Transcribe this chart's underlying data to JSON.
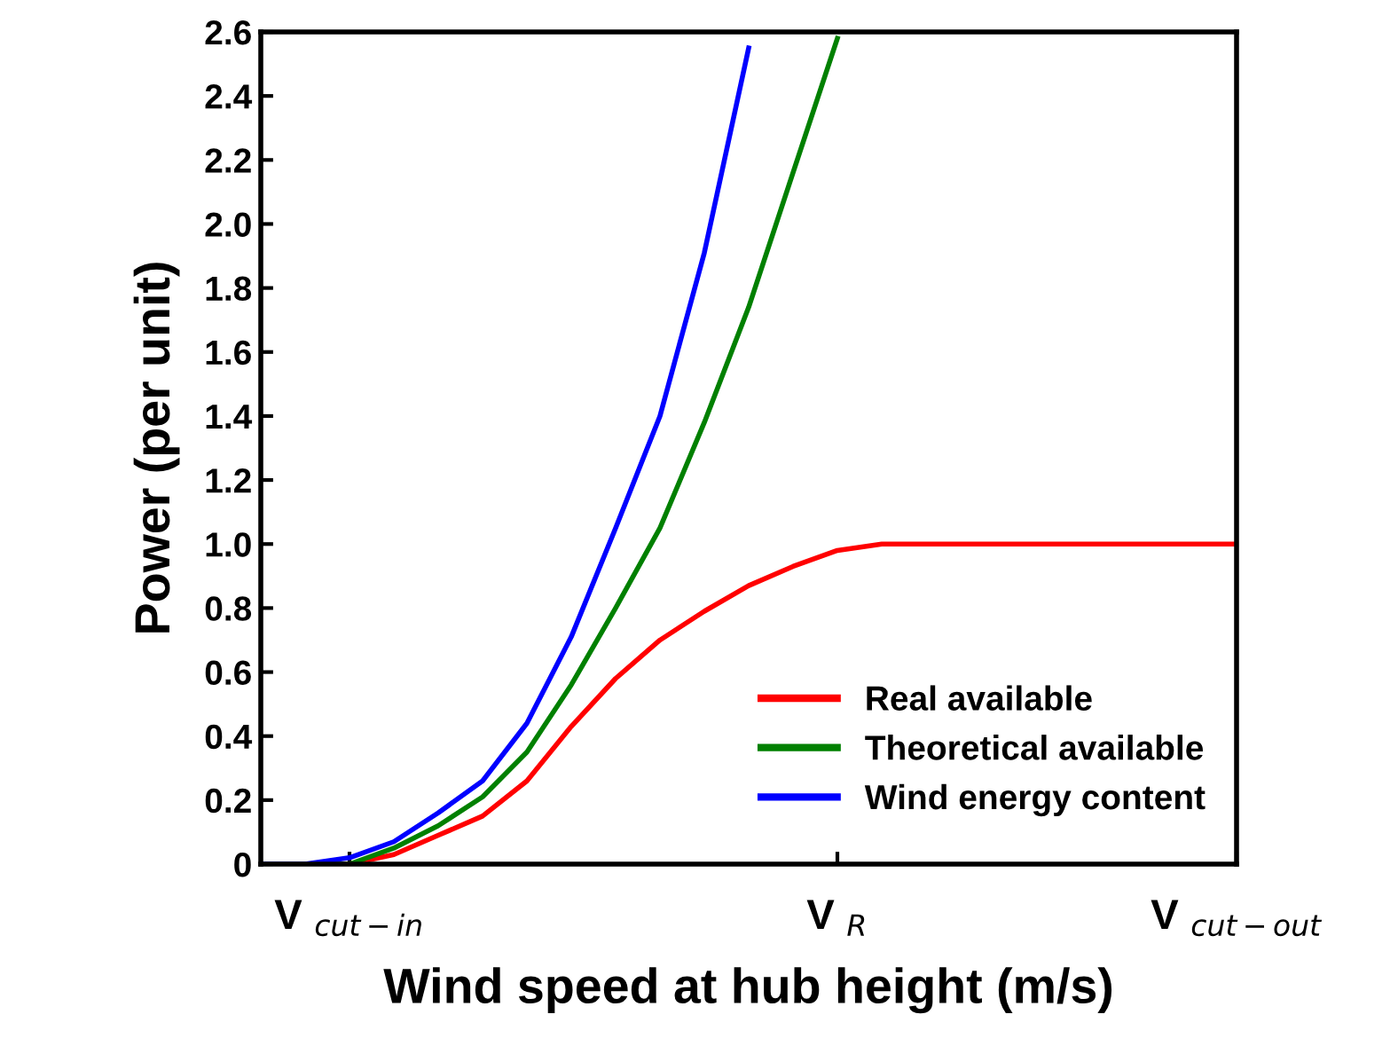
{
  "chart_data": {
    "type": "line",
    "xlabel": "Wind speed at hub height (m/s)",
    "ylabel": "Power (per unit)",
    "categories": [
      null,
      null,
      "V $_{cut−in}$",
      null,
      null,
      null,
      null,
      null,
      null,
      null,
      null,
      null,
      null,
      "V $_{R}$",
      null,
      null,
      null,
      null,
      null,
      null,
      null,
      null,
      "V $_{cut−out}$"
    ],
    "ylim": [
      0,
      2.6
    ],
    "yticks": [
      0,
      {
        "value": 0.2,
        "label": "0.2"
      },
      {
        "value": 0.4,
        "label": "0.4"
      },
      {
        "value": 0.6,
        "label": "0.6"
      },
      {
        "value": 0.8,
        "label": "0.8"
      },
      {
        "value": 1.0,
        "label": "1.0"
      },
      {
        "value": 1.2,
        "label": "1.2"
      },
      {
        "value": 1.4,
        "label": "1.4"
      },
      {
        "value": 1.6,
        "label": "1.6"
      },
      {
        "value": 1.8,
        "label": "1.8"
      },
      {
        "value": 2.0,
        "label": "2.0"
      },
      {
        "value": 2.2,
        "label": "2.2"
      },
      {
        "value": 2.4,
        "label": "2.4"
      },
      {
        "value": 2.6,
        "label": "2.6"
      }
    ],
    "grid": false,
    "legend": "bottom right",
    "marker": "none",
    "line_style": "solid",
    "series": [
      {
        "name": "Real available",
        "color": "#ff0000",
        "values": [
          0,
          0,
          0,
          0.03,
          0.09,
          0.15,
          0.26,
          0.43,
          0.58,
          0.7,
          0.79,
          0.87,
          0.93,
          0.98,
          1.0,
          1.0,
          1.0,
          1.0,
          1.0,
          1.0,
          1.0,
          1.0,
          1.0
        ]
      },
      {
        "name": "Theoretical available",
        "color": "#008000",
        "values": [
          0,
          0,
          0,
          0.05,
          0.12,
          0.21,
          0.35,
          0.56,
          0.8,
          1.05,
          1.38,
          1.74,
          2.16,
          2.58,
          null,
          null,
          null,
          null,
          null,
          null,
          null,
          null,
          null
        ]
      },
      {
        "name": "Wind energy content",
        "color": "#0000ff",
        "values": [
          0,
          0,
          0.02,
          0.07,
          0.16,
          0.26,
          0.44,
          0.71,
          1.05,
          1.4,
          1.91,
          2.55,
          null,
          null,
          null,
          null,
          null,
          null,
          null,
          null,
          null,
          null,
          null
        ]
      }
    ]
  }
}
